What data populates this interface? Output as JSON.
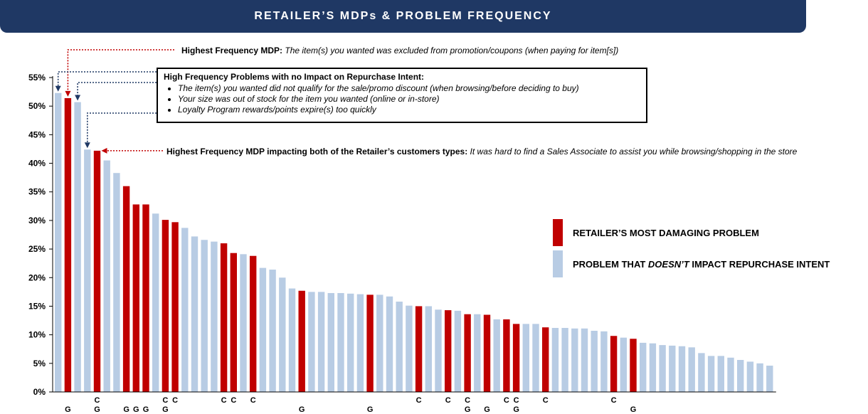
{
  "title": "RETAILER’S MDPs & PROBLEM FREQUENCY",
  "colors": {
    "mdp": "#c00000",
    "no_impact": "#b8cce4",
    "title_bg": "#1f3864"
  },
  "annotations": {
    "highest_mdp_label": "Highest Frequency MDP:",
    "highest_mdp_text": "The item(s) you wanted was excluded from promotion/coupons (when paying for item[s])",
    "box_header": "High Frequency Problems with no Impact on Repurchase Intent:",
    "box_items": [
      "The item(s) you wanted did not qualify for the sale/promo discount (when browsing/before deciding to buy)",
      "Your size was out of stock for the item you wanted (online or in-store)",
      "Loyalty Program rewards/points expire(s) too quickly"
    ],
    "both_label": "Highest Frequency MDP impacting both of the Retailer’s customers types:",
    "both_text": "It was hard to find a Sales Associate to assist you while browsing/shopping in the store"
  },
  "legend": {
    "mdp": "RETAILER’S MOST DAMAGING PROBLEM",
    "no_impact_pre": "PROBLEM THAT ",
    "no_impact_em": "DOESN’T",
    "no_impact_post": " IMPACT REPURCHASE INTENT"
  },
  "chart_data": {
    "type": "bar",
    "ylim": [
      0,
      55
    ],
    "yticks": [
      "0%",
      "5%",
      "10%",
      "15%",
      "20%",
      "25%",
      "30%",
      "35%",
      "40%",
      "45%",
      "50%",
      "55%"
    ],
    "bars": [
      {
        "v": 52.3,
        "mdp": false,
        "l1": "",
        "l2": ""
      },
      {
        "v": 51.4,
        "mdp": true,
        "l1": "",
        "l2": "G"
      },
      {
        "v": 50.7,
        "mdp": false,
        "l1": "",
        "l2": ""
      },
      {
        "v": 42.4,
        "mdp": false,
        "l1": "",
        "l2": ""
      },
      {
        "v": 42.2,
        "mdp": true,
        "l1": "C",
        "l2": "G"
      },
      {
        "v": 40.5,
        "mdp": false,
        "l1": "",
        "l2": ""
      },
      {
        "v": 38.3,
        "mdp": false,
        "l1": "",
        "l2": ""
      },
      {
        "v": 36.0,
        "mdp": true,
        "l1": "",
        "l2": "G"
      },
      {
        "v": 32.8,
        "mdp": true,
        "l1": "",
        "l2": "G"
      },
      {
        "v": 32.8,
        "mdp": true,
        "l1": "",
        "l2": "G"
      },
      {
        "v": 31.2,
        "mdp": false,
        "l1": "",
        "l2": ""
      },
      {
        "v": 30.1,
        "mdp": true,
        "l1": "C",
        "l2": "G"
      },
      {
        "v": 29.7,
        "mdp": true,
        "l1": "C",
        "l2": ""
      },
      {
        "v": 28.7,
        "mdp": false,
        "l1": "",
        "l2": ""
      },
      {
        "v": 27.2,
        "mdp": false,
        "l1": "",
        "l2": ""
      },
      {
        "v": 26.6,
        "mdp": false,
        "l1": "",
        "l2": ""
      },
      {
        "v": 26.3,
        "mdp": false,
        "l1": "",
        "l2": ""
      },
      {
        "v": 26.0,
        "mdp": true,
        "l1": "C",
        "l2": ""
      },
      {
        "v": 24.3,
        "mdp": true,
        "l1": "C",
        "l2": ""
      },
      {
        "v": 24.1,
        "mdp": false,
        "l1": "",
        "l2": ""
      },
      {
        "v": 23.8,
        "mdp": true,
        "l1": "C",
        "l2": ""
      },
      {
        "v": 21.7,
        "mdp": false,
        "l1": "",
        "l2": ""
      },
      {
        "v": 21.4,
        "mdp": false,
        "l1": "",
        "l2": ""
      },
      {
        "v": 20.0,
        "mdp": false,
        "l1": "",
        "l2": ""
      },
      {
        "v": 18.1,
        "mdp": false,
        "l1": "",
        "l2": ""
      },
      {
        "v": 17.7,
        "mdp": true,
        "l1": "",
        "l2": "G"
      },
      {
        "v": 17.5,
        "mdp": false,
        "l1": "",
        "l2": ""
      },
      {
        "v": 17.5,
        "mdp": false,
        "l1": "",
        "l2": ""
      },
      {
        "v": 17.3,
        "mdp": false,
        "l1": "",
        "l2": ""
      },
      {
        "v": 17.3,
        "mdp": false,
        "l1": "",
        "l2": ""
      },
      {
        "v": 17.2,
        "mdp": false,
        "l1": "",
        "l2": ""
      },
      {
        "v": 17.1,
        "mdp": false,
        "l1": "",
        "l2": ""
      },
      {
        "v": 17.0,
        "mdp": true,
        "l1": "",
        "l2": "G"
      },
      {
        "v": 17.0,
        "mdp": false,
        "l1": "",
        "l2": ""
      },
      {
        "v": 16.7,
        "mdp": false,
        "l1": "",
        "l2": ""
      },
      {
        "v": 15.8,
        "mdp": false,
        "l1": "",
        "l2": ""
      },
      {
        "v": 15.1,
        "mdp": false,
        "l1": "",
        "l2": ""
      },
      {
        "v": 15.0,
        "mdp": true,
        "l1": "C",
        "l2": ""
      },
      {
        "v": 15.0,
        "mdp": false,
        "l1": "",
        "l2": ""
      },
      {
        "v": 14.4,
        "mdp": false,
        "l1": "",
        "l2": ""
      },
      {
        "v": 14.3,
        "mdp": true,
        "l1": "C",
        "l2": ""
      },
      {
        "v": 14.2,
        "mdp": false,
        "l1": "",
        "l2": ""
      },
      {
        "v": 13.6,
        "mdp": true,
        "l1": "C",
        "l2": "G"
      },
      {
        "v": 13.6,
        "mdp": false,
        "l1": "",
        "l2": ""
      },
      {
        "v": 13.5,
        "mdp": true,
        "l1": "",
        "l2": "G"
      },
      {
        "v": 12.7,
        "mdp": false,
        "l1": "",
        "l2": ""
      },
      {
        "v": 12.7,
        "mdp": true,
        "l1": "C",
        "l2": ""
      },
      {
        "v": 11.9,
        "mdp": true,
        "l1": "C",
        "l2": "G"
      },
      {
        "v": 11.9,
        "mdp": false,
        "l1": "",
        "l2": ""
      },
      {
        "v": 11.9,
        "mdp": false,
        "l1": "",
        "l2": ""
      },
      {
        "v": 11.3,
        "mdp": true,
        "l1": "C",
        "l2": ""
      },
      {
        "v": 11.2,
        "mdp": false,
        "l1": "",
        "l2": ""
      },
      {
        "v": 11.2,
        "mdp": false,
        "l1": "",
        "l2": ""
      },
      {
        "v": 11.1,
        "mdp": false,
        "l1": "",
        "l2": ""
      },
      {
        "v": 11.1,
        "mdp": false,
        "l1": "",
        "l2": ""
      },
      {
        "v": 10.7,
        "mdp": false,
        "l1": "",
        "l2": ""
      },
      {
        "v": 10.6,
        "mdp": false,
        "l1": "",
        "l2": ""
      },
      {
        "v": 9.8,
        "mdp": true,
        "l1": "C",
        "l2": ""
      },
      {
        "v": 9.5,
        "mdp": false,
        "l1": "",
        "l2": ""
      },
      {
        "v": 9.3,
        "mdp": true,
        "l1": "",
        "l2": "G"
      },
      {
        "v": 8.6,
        "mdp": false,
        "l1": "",
        "l2": ""
      },
      {
        "v": 8.5,
        "mdp": false,
        "l1": "",
        "l2": ""
      },
      {
        "v": 8.2,
        "mdp": false,
        "l1": "",
        "l2": ""
      },
      {
        "v": 8.1,
        "mdp": false,
        "l1": "",
        "l2": ""
      },
      {
        "v": 8.0,
        "mdp": false,
        "l1": "",
        "l2": ""
      },
      {
        "v": 7.8,
        "mdp": false,
        "l1": "",
        "l2": ""
      },
      {
        "v": 6.8,
        "mdp": false,
        "l1": "",
        "l2": ""
      },
      {
        "v": 6.3,
        "mdp": false,
        "l1": "",
        "l2": ""
      },
      {
        "v": 6.3,
        "mdp": false,
        "l1": "",
        "l2": ""
      },
      {
        "v": 6.0,
        "mdp": false,
        "l1": "",
        "l2": ""
      },
      {
        "v": 5.6,
        "mdp": false,
        "l1": "",
        "l2": ""
      },
      {
        "v": 5.3,
        "mdp": false,
        "l1": "",
        "l2": ""
      },
      {
        "v": 5.0,
        "mdp": false,
        "l1": "",
        "l2": ""
      },
      {
        "v": 4.6,
        "mdp": false,
        "l1": "",
        "l2": ""
      }
    ]
  }
}
